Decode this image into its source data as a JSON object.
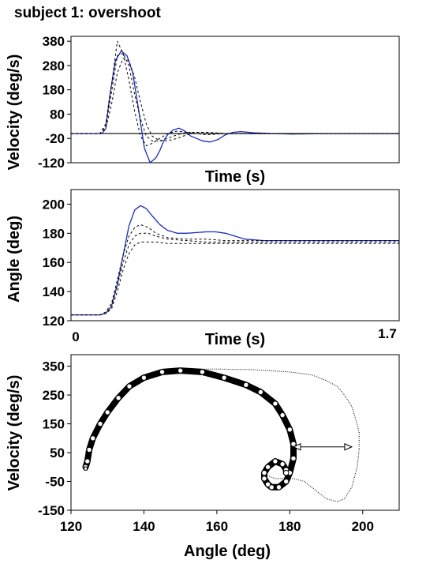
{
  "figure": {
    "title": "subject 1: overshoot"
  },
  "chart_data": [
    {
      "type": "line",
      "id": "velocity_time",
      "xlabel": "Time (s)",
      "ylabel": "Velocity (deg/s)",
      "xlim": [
        0,
        1.7
      ],
      "ylim": [
        -120,
        400
      ],
      "yticks": [
        380,
        280,
        180,
        80,
        -20,
        -120
      ],
      "baseline_y": 0,
      "series": [
        {
          "style": "solid",
          "color": "#1f2db8",
          "x": [
            0,
            0.16,
            0.18,
            0.2,
            0.23,
            0.26,
            0.29,
            0.32,
            0.35,
            0.38,
            0.41,
            0.44,
            0.46,
            0.48,
            0.5,
            0.53,
            0.56,
            0.59,
            0.62,
            0.65,
            0.68,
            0.72,
            0.76,
            0.8,
            0.84,
            0.88,
            0.95,
            1.05,
            1.15,
            1.3,
            1.5,
            1.7
          ],
          "y": [
            0,
            0,
            20,
            150,
            300,
            340,
            320,
            250,
            100,
            -60,
            -120,
            -100,
            -70,
            -30,
            -5,
            15,
            22,
            10,
            -10,
            -20,
            -30,
            -35,
            -25,
            -5,
            5,
            8,
            3,
            0,
            -2,
            0,
            0,
            0
          ]
        },
        {
          "style": "dashed",
          "color": "#000000",
          "x": [
            0,
            0.15,
            0.18,
            0.21,
            0.24,
            0.27,
            0.3,
            0.33,
            0.36,
            0.39,
            0.42,
            0.46,
            0.5,
            0.55,
            0.6,
            0.65,
            0.7,
            0.8,
            1.0,
            1.7
          ],
          "y": [
            0,
            0,
            40,
            200,
            380,
            330,
            220,
            90,
            -10,
            -50,
            -40,
            -20,
            0,
            10,
            5,
            0,
            -5,
            0,
            0,
            0
          ]
        },
        {
          "style": "dashed",
          "color": "#000000",
          "x": [
            0,
            0.15,
            0.18,
            0.21,
            0.24,
            0.27,
            0.3,
            0.33,
            0.36,
            0.39,
            0.42,
            0.46,
            0.5,
            0.55,
            0.6,
            0.7,
            0.8,
            1.0,
            1.7
          ],
          "y": [
            0,
            0,
            30,
            170,
            320,
            330,
            280,
            160,
            60,
            -10,
            -30,
            -30,
            -20,
            -5,
            5,
            5,
            0,
            0,
            0
          ]
        },
        {
          "style": "dashed",
          "color": "#000000",
          "x": [
            0,
            0.15,
            0.18,
            0.21,
            0.24,
            0.27,
            0.3,
            0.33,
            0.36,
            0.39,
            0.42,
            0.46,
            0.5,
            0.55,
            0.6,
            0.65,
            0.7,
            0.8,
            1.0,
            1.7
          ],
          "y": [
            0,
            0,
            20,
            120,
            250,
            310,
            300,
            230,
            130,
            40,
            -10,
            -30,
            -30,
            -20,
            -5,
            5,
            5,
            0,
            0,
            0
          ]
        }
      ]
    },
    {
      "type": "line",
      "id": "angle_time",
      "xlabel": "Time (s)",
      "ylabel": "Angle (deg)",
      "xlim": [
        0,
        1.7
      ],
      "ylim": [
        120,
        210
      ],
      "yticks": [
        200,
        180,
        160,
        140,
        120
      ],
      "xticks": [
        "0",
        "1.7"
      ],
      "series": [
        {
          "style": "solid",
          "color": "#1f2db8",
          "x": [
            0,
            0.15,
            0.18,
            0.21,
            0.24,
            0.27,
            0.3,
            0.33,
            0.36,
            0.39,
            0.42,
            0.46,
            0.5,
            0.55,
            0.6,
            0.65,
            0.7,
            0.75,
            0.8,
            0.85,
            0.9,
            1.0,
            1.2,
            1.4,
            1.7
          ],
          "y": [
            124,
            124,
            125,
            130,
            145,
            165,
            185,
            196,
            199,
            197,
            192,
            186,
            182,
            180,
            180,
            180.5,
            181,
            181,
            180,
            178,
            176,
            175,
            175,
            175,
            175
          ]
        },
        {
          "style": "dashed",
          "color": "#000000",
          "x": [
            0,
            0.15,
            0.18,
            0.21,
            0.24,
            0.27,
            0.3,
            0.33,
            0.36,
            0.4,
            0.44,
            0.5,
            0.6,
            0.7,
            0.8,
            1.0,
            1.7
          ],
          "y": [
            124,
            124,
            126,
            132,
            148,
            165,
            178,
            184,
            186,
            184,
            180,
            177,
            176,
            176,
            175,
            175,
            175
          ]
        },
        {
          "style": "dashed",
          "color": "#000000",
          "x": [
            0,
            0.15,
            0.18,
            0.21,
            0.24,
            0.27,
            0.3,
            0.33,
            0.36,
            0.4,
            0.44,
            0.5,
            0.6,
            0.7,
            0.8,
            1.0,
            1.7
          ],
          "y": [
            124,
            124,
            125,
            130,
            144,
            160,
            172,
            178,
            180,
            180,
            178,
            176,
            175,
            174,
            174,
            174,
            174
          ]
        },
        {
          "style": "dashed",
          "color": "#000000",
          "x": [
            0,
            0.15,
            0.18,
            0.21,
            0.24,
            0.27,
            0.3,
            0.33,
            0.36,
            0.4,
            0.44,
            0.5,
            0.6,
            0.7,
            0.8,
            1.0,
            1.7
          ],
          "y": [
            124,
            124,
            125,
            128,
            140,
            155,
            166,
            172,
            174,
            174,
            174,
            173,
            173,
            173,
            173,
            173,
            173
          ]
        }
      ]
    },
    {
      "type": "line",
      "id": "velocity_angle_phase",
      "xlabel": "Angle (deg)",
      "ylabel": "Velocity (deg/s)",
      "xlim": [
        120,
        210
      ],
      "ylim": [
        -150,
        390
      ],
      "xticks": [
        120,
        140,
        160,
        180,
        200
      ],
      "yticks": [
        350,
        250,
        150,
        50,
        -50,
        -150
      ],
      "series": [
        {
          "style": "thick-markers",
          "color": "#000000",
          "x": [
            124,
            124.5,
            125,
            126,
            128,
            130,
            133,
            136,
            140,
            145,
            150,
            156,
            162,
            168,
            172,
            176,
            178,
            180,
            181,
            181,
            180,
            179,
            177,
            175,
            174,
            173,
            173,
            174,
            176,
            178,
            179,
            179
          ],
          "y": [
            0,
            20,
            60,
            100,
            150,
            190,
            240,
            280,
            310,
            330,
            335,
            330,
            310,
            285,
            260,
            220,
            180,
            130,
            80,
            30,
            -20,
            -50,
            -70,
            -70,
            -60,
            -40,
            -20,
            0,
            20,
            10,
            -10,
            -20
          ]
        },
        {
          "style": "thin-dotted",
          "color": "#000000",
          "x": [
            150,
            160,
            170,
            180,
            186,
            190,
            193,
            195,
            197,
            198,
            199,
            199,
            198.5,
            197,
            195,
            193,
            190,
            187,
            184,
            181,
            178,
            176,
            174
          ],
          "y": [
            340,
            340,
            338,
            330,
            320,
            300,
            280,
            250,
            210,
            170,
            120,
            60,
            0,
            -70,
            -110,
            -120,
            -110,
            -80,
            -50,
            -40,
            -40,
            -40,
            -30
          ]
        }
      ],
      "annotation": {
        "type": "double-arrow",
        "y": 70,
        "x_from": 181,
        "x_to": 197
      },
      "start_marker": {
        "x": 124,
        "y": -5
      }
    }
  ]
}
